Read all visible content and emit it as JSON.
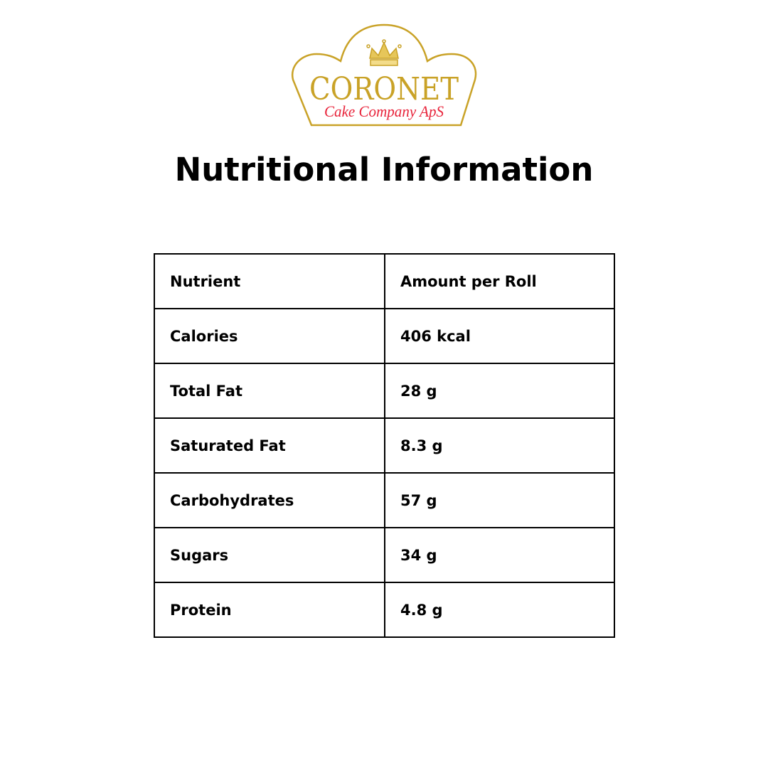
{
  "logo": {
    "brand": "CORONET",
    "subtitle": "Cake Company ApS",
    "gold": "#c9a227",
    "red": "#e8233a"
  },
  "title": "Nutritional Information",
  "table": {
    "headers": [
      "Nutrient",
      "Amount per Roll"
    ],
    "rows": [
      [
        "Calories",
        "406 kcal"
      ],
      [
        "Total Fat",
        "28 g"
      ],
      [
        "Saturated Fat",
        "8.3 g"
      ],
      [
        "Carbohydrates",
        "57 g"
      ],
      [
        "Sugars",
        "34 g"
      ],
      [
        "Protein",
        "4.8 g"
      ]
    ]
  }
}
